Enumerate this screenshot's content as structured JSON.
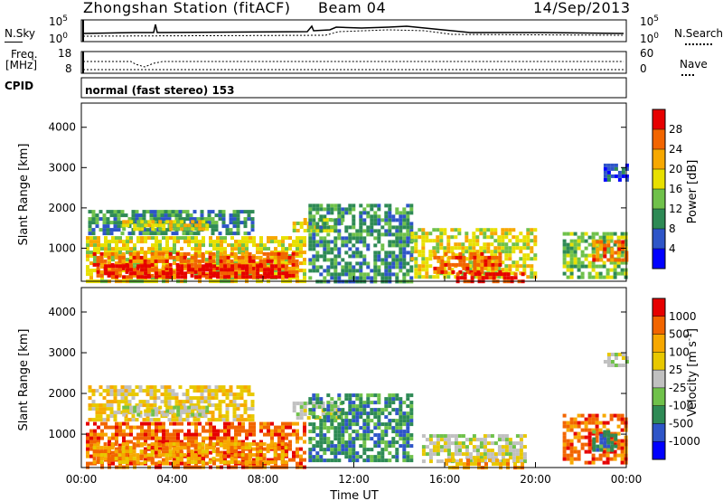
{
  "header": {
    "station": "Zhongshan Station (fitACF)",
    "beam": "Beam 04",
    "date": "14/Sep/2013"
  },
  "left_labels": {
    "nsky": "N.Sky",
    "freq": "Freq.",
    "freq_unit": "[MHz]",
    "cpid": "CPID"
  },
  "right_labels": {
    "nsearch": "N.Search",
    "nave": "Nave"
  },
  "noise_panel": {
    "left_ticks": [
      "10^5",
      "10^0"
    ],
    "right_ticks": [
      "10^5",
      "10^0"
    ]
  },
  "freq_panel": {
    "left_ticks": [
      "18",
      "8"
    ],
    "right_ticks": [
      "60",
      "0"
    ]
  },
  "cpid_text": "normal (fast stereo) 153",
  "chart_data": [
    {
      "type": "heatmap",
      "name": "power",
      "ylabel": "Slant Range [km]",
      "yticks": [
        1000,
        2000,
        3000,
        4000
      ],
      "ylim": [
        180,
        4600
      ],
      "xlim": [
        0,
        24
      ],
      "colorbar_label": "Power [dB]",
      "colorbar_ticks": [
        "28",
        "24",
        "20",
        "16",
        "12",
        "8",
        "4"
      ],
      "colorbar_colors": [
        "#0000ff",
        "#2e55c8",
        "#2e8a55",
        "#6fc14a",
        "#e8e000",
        "#f7a800",
        "#f26500",
        "#e60000"
      ],
      "regions": [
        {
          "t0": 0.2,
          "t1": 9.8,
          "r0": 220,
          "r1": 1300,
          "level": 4
        },
        {
          "t0": 0.5,
          "t1": 9.5,
          "r0": 300,
          "r1": 900,
          "level": 6
        },
        {
          "t0": 1.0,
          "t1": 9.0,
          "r0": 300,
          "r1": 600,
          "level": 7
        },
        {
          "t0": 0.3,
          "t1": 7.5,
          "r0": 1400,
          "r1": 1950,
          "level": 2
        },
        {
          "t0": 1.8,
          "t1": 5.5,
          "r0": 1450,
          "r1": 1700,
          "level": 4
        },
        {
          "t0": 9.3,
          "t1": 11.5,
          "r0": 1400,
          "r1": 1750,
          "level": 4
        },
        {
          "t0": 10.0,
          "t1": 14.5,
          "r0": 200,
          "r1": 2100,
          "level": 2
        },
        {
          "t0": 14.5,
          "t1": 20.0,
          "r0": 250,
          "r1": 1500,
          "level": 4
        },
        {
          "t0": 15.5,
          "t1": 18.5,
          "r0": 400,
          "r1": 900,
          "level": 6
        },
        {
          "t0": 16.5,
          "t1": 19.5,
          "r0": 200,
          "r1": 400,
          "level": 7
        },
        {
          "t0": 21.2,
          "t1": 24.0,
          "r0": 300,
          "r1": 1400,
          "level": 3
        },
        {
          "t0": 22.5,
          "t1": 24.0,
          "r0": 700,
          "r1": 1200,
          "level": 6
        },
        {
          "t0": 23.0,
          "t1": 24.0,
          "r0": 2700,
          "r1": 3100,
          "level": 1
        }
      ]
    },
    {
      "type": "heatmap",
      "name": "velocity",
      "ylabel": "Slant Range [km]",
      "xlabel": "Time UT",
      "xticks": [
        "00:00",
        "04:00",
        "08:00",
        "12:00",
        "16:00",
        "20:00",
        "00:00"
      ],
      "yticks": [
        1000,
        2000,
        3000,
        4000
      ],
      "ylim": [
        180,
        4600
      ],
      "xlim": [
        0,
        24
      ],
      "colorbar_label": "Velocity [m s^-1]",
      "colorbar_ticks": [
        "1000",
        "500",
        "100",
        "25",
        "-25",
        "-100",
        "-500",
        "-1000"
      ],
      "colorbar_colors": [
        "#e60000",
        "#f26500",
        "#f7a800",
        "#e8c800",
        "#c0c0c0",
        "#6fc14a",
        "#2e8a55",
        "#2e55c8",
        "#0000ff"
      ],
      "regions": [
        {
          "t0": 0.2,
          "t1": 9.8,
          "r0": 220,
          "r1": 1300,
          "level": 1
        },
        {
          "t0": 0.5,
          "t1": 9.0,
          "r0": 300,
          "r1": 800,
          "level": 2
        },
        {
          "t0": 0.3,
          "t1": 7.5,
          "r0": 1400,
          "r1": 2200,
          "level": 3
        },
        {
          "t0": 1.8,
          "t1": 5.5,
          "r0": 1450,
          "r1": 1700,
          "level": 4
        },
        {
          "t0": 9.3,
          "t1": 11.5,
          "r0": 1400,
          "r1": 1800,
          "level": 4
        },
        {
          "t0": 10.0,
          "t1": 14.5,
          "r0": 400,
          "r1": 2000,
          "level": 6
        },
        {
          "t0": 15.0,
          "t1": 19.5,
          "r0": 300,
          "r1": 1000,
          "level": 4
        },
        {
          "t0": 16.0,
          "t1": 19.5,
          "r0": 200,
          "r1": 400,
          "level": 2
        },
        {
          "t0": 21.2,
          "t1": 24.0,
          "r0": 300,
          "r1": 1500,
          "level": 1
        },
        {
          "t0": 22.5,
          "t1": 23.5,
          "r0": 600,
          "r1": 1100,
          "level": 6
        },
        {
          "t0": 23.0,
          "t1": 24.0,
          "r0": 2700,
          "r1": 3000,
          "level": 4
        }
      ]
    }
  ]
}
